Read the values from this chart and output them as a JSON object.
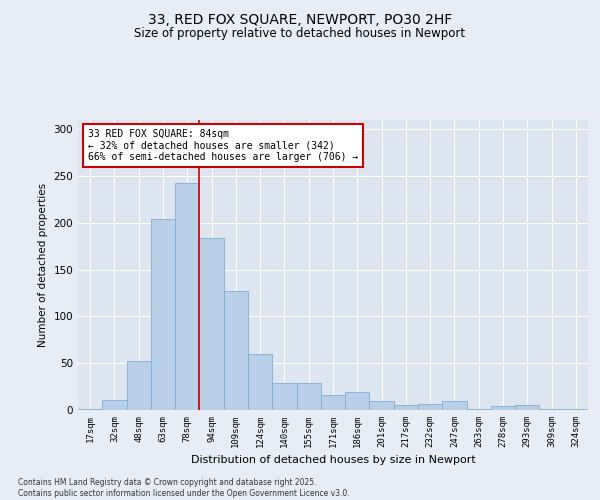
{
  "title1": "33, RED FOX SQUARE, NEWPORT, PO30 2HF",
  "title2": "Size of property relative to detached houses in Newport",
  "xlabel": "Distribution of detached houses by size in Newport",
  "ylabel": "Number of detached properties",
  "categories": [
    "17sqm",
    "32sqm",
    "48sqm",
    "63sqm",
    "78sqm",
    "94sqm",
    "109sqm",
    "124sqm",
    "140sqm",
    "155sqm",
    "171sqm",
    "186sqm",
    "201sqm",
    "217sqm",
    "232sqm",
    "247sqm",
    "263sqm",
    "278sqm",
    "293sqm",
    "309sqm",
    "324sqm"
  ],
  "values": [
    1,
    11,
    52,
    204,
    243,
    184,
    127,
    60,
    29,
    29,
    16,
    19,
    10,
    5,
    6,
    10,
    1,
    4,
    5,
    1,
    1
  ],
  "bar_color": "#b8cfe8",
  "bar_edge_color": "#7fafd4",
  "vline_x": 4.5,
  "vline_color": "#cc0000",
  "annotation_line1": "33 RED FOX SQUARE: 84sqm",
  "annotation_line2": "← 32% of detached houses are smaller (342)",
  "annotation_line3": "66% of semi-detached houses are larger (706) →",
  "annotation_box_color": "#ffffff",
  "annotation_box_edge_color": "#cc0000",
  "ylim": [
    0,
    310
  ],
  "yticks": [
    0,
    50,
    100,
    150,
    200,
    250,
    300
  ],
  "footer1": "Contains HM Land Registry data © Crown copyright and database right 2025.",
  "footer2": "Contains public sector information licensed under the Open Government Licence v3.0.",
  "bg_color": "#e8edf5",
  "plot_bg_color": "#dce5f0"
}
